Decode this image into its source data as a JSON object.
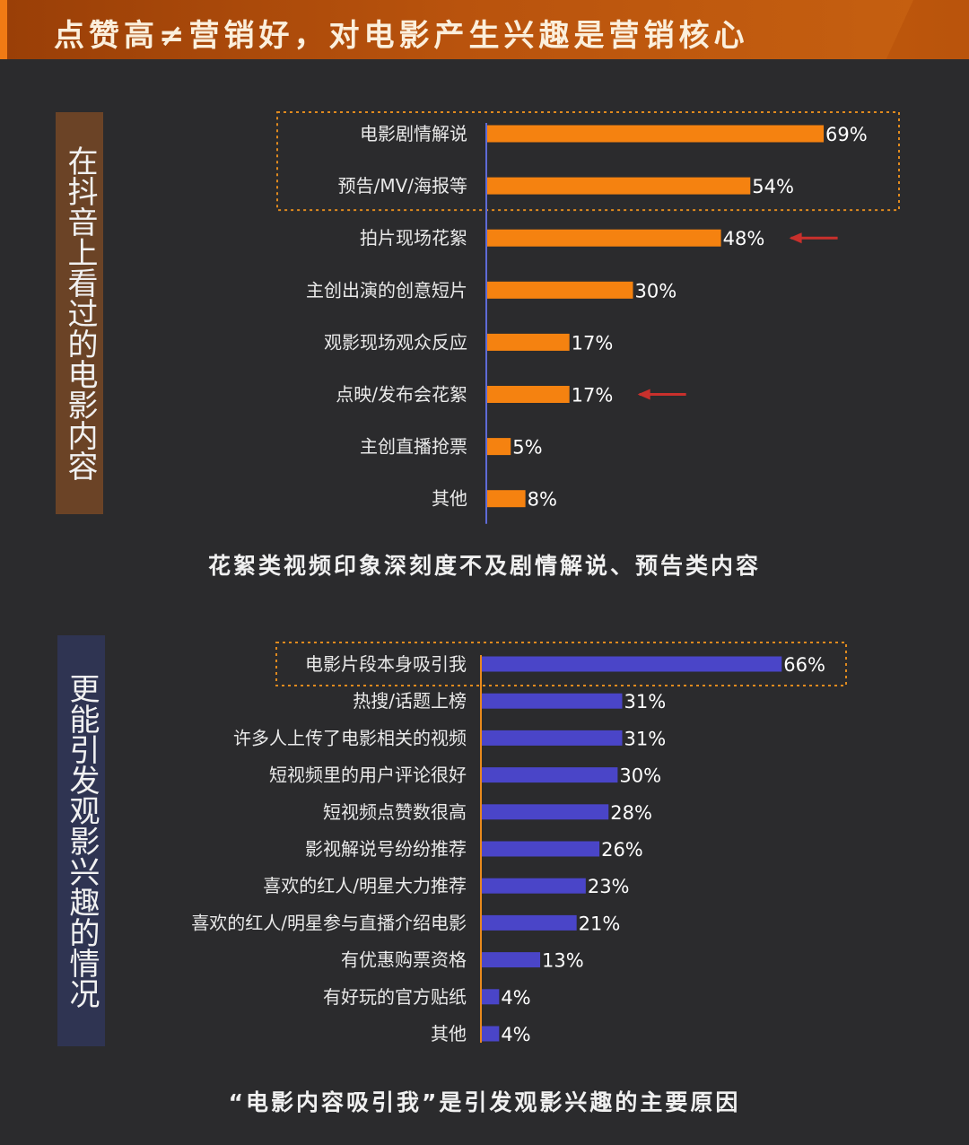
{
  "header": {
    "title": "点赞高≠营销好，对电影产生兴趣是营销核心"
  },
  "chart_data": [
    {
      "type": "bar",
      "orientation": "horizontal",
      "side_label": "在抖音上看过的电影内容",
      "categories": [
        "电影剧情解说",
        "预告/MV/海报等",
        "拍片现场花絮",
        "主创出演的创意短片",
        "观影现场观众反应",
        "点映/发布会花絮",
        "主创直播抢票",
        "其他"
      ],
      "values": [
        69,
        54,
        48,
        30,
        17,
        17,
        5,
        8
      ],
      "value_labels": [
        "69%",
        "54%",
        "48%",
        "30%",
        "17%",
        "17%",
        "5%",
        "8%"
      ],
      "unit": "%",
      "highlight_box": [
        "电影剧情解说",
        "预告/MV/海报等"
      ],
      "arrow_markers": [
        "拍片现场花絮",
        "点映/发布会花絮"
      ],
      "bar_color": "#f58210",
      "axis_color": "#5f6bd6",
      "box_color": "#e08a1e",
      "arrow_color": "#c9302c",
      "caption": "花絮类视频印象深刻度不及剧情解说、预告类内容"
    },
    {
      "type": "bar",
      "orientation": "horizontal",
      "side_label": "更能引发观影兴趣的情况",
      "categories": [
        "电影片段本身吸引我",
        "热搜/话题上榜",
        "许多人上传了电影相关的视频",
        "短视频里的用户评论很好",
        "短视频点赞数很高",
        "影视解说号纷纷推荐",
        "喜欢的红人/明星大力推荐",
        "喜欢的红人/明星参与直播介绍电影",
        "有优惠购票资格",
        "有好玩的官方贴纸",
        "其他"
      ],
      "values": [
        66,
        31,
        31,
        30,
        28,
        26,
        23,
        21,
        13,
        4,
        4
      ],
      "value_labels": [
        "66%",
        "31%",
        "31%",
        "30%",
        "28%",
        "26%",
        "23%",
        "21%",
        "13%",
        "4%",
        "4%"
      ],
      "unit": "%",
      "highlight_box": [
        "电影片段本身吸引我"
      ],
      "bar_color": "#4a45c8",
      "axis_color": "#e8891c",
      "box_color": "#e08a1e",
      "caption": "“电影内容吸引我”是引发观影兴趣的主要原因"
    }
  ]
}
